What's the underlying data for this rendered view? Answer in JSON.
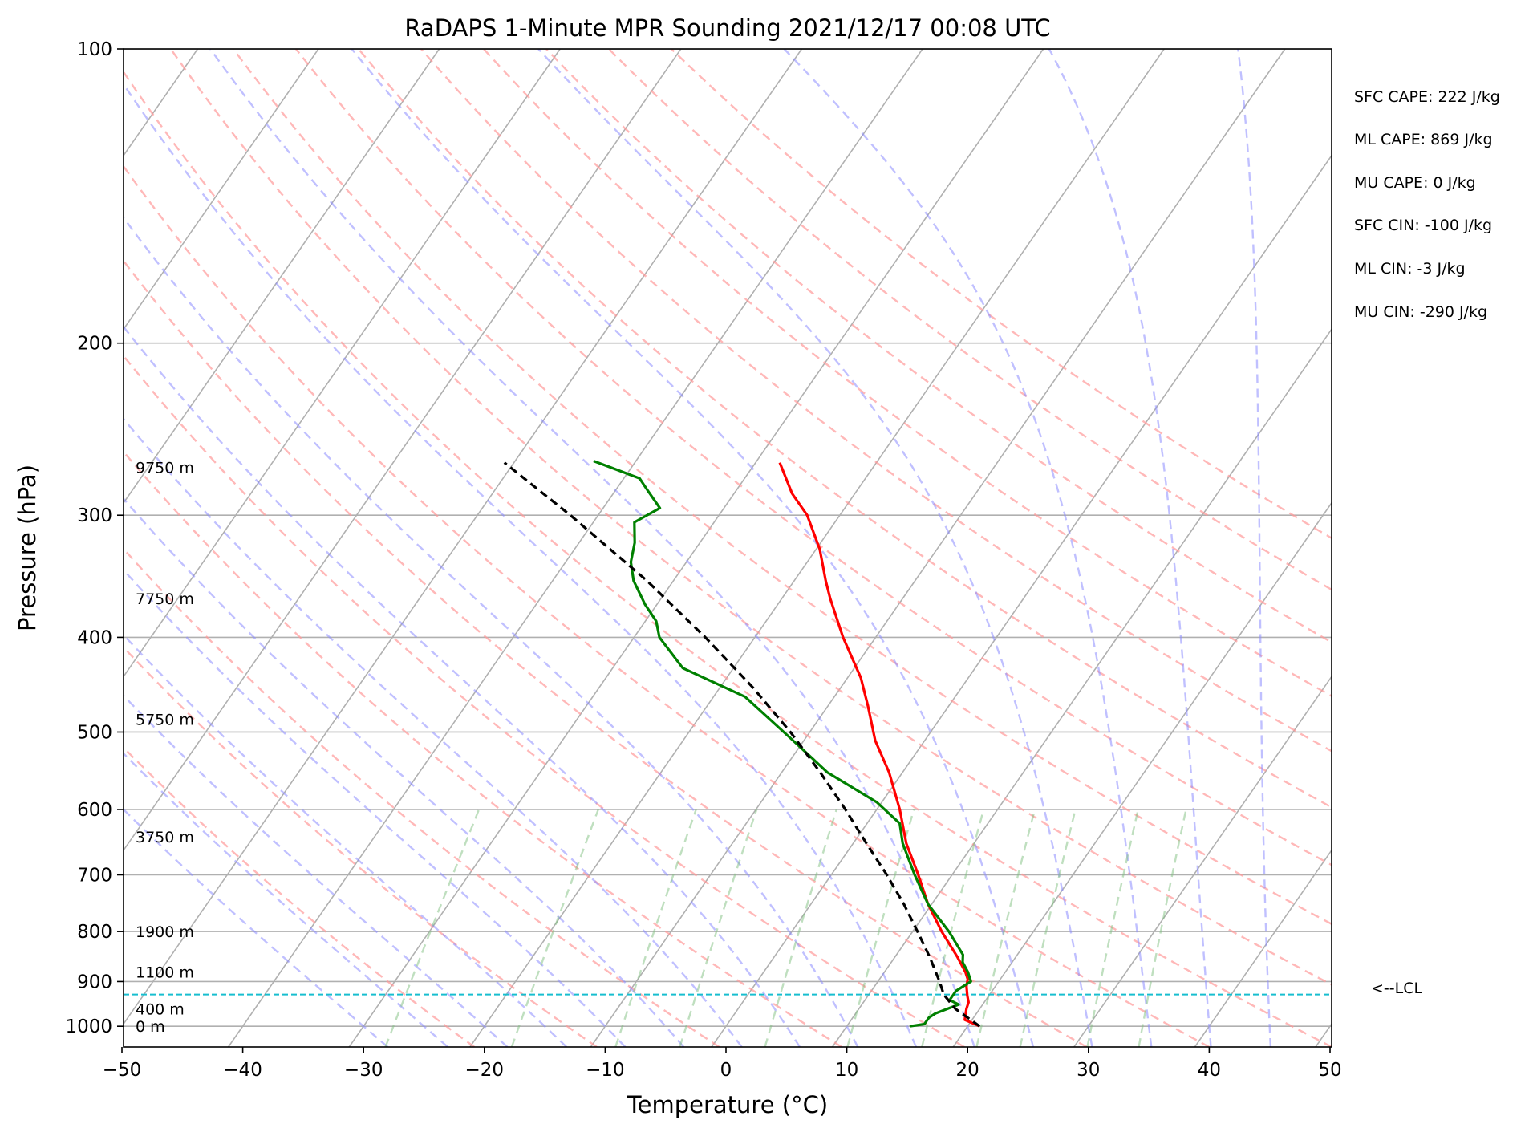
{
  "chart_data": {
    "type": "line",
    "subtype": "skew-t log-p diagram",
    "title": "RaDAPS 1-Minute MPR Sounding 2021/12/17 00:08 UTC",
    "xlabel": "Temperature (°C)",
    "ylabel": "Pressure (hPa)",
    "xlim": [
      -50,
      50
    ],
    "ylim": [
      1050,
      100
    ],
    "y_scale": "log",
    "grid": true,
    "x_ticks": [
      "−50",
      "−40",
      "−30",
      "−20",
      "−10",
      "0",
      "10",
      "20",
      "30",
      "40",
      "50"
    ],
    "y_ticks": [
      "100",
      "200",
      "300",
      "400",
      "500",
      "600",
      "700",
      "800",
      "900",
      "1000"
    ],
    "y_tick_values": [
      100,
      200,
      300,
      400,
      500,
      600,
      700,
      800,
      900,
      1000
    ],
    "height_labels": [
      {
        "p": 268,
        "text": "9750 m"
      },
      {
        "p": 365,
        "text": "7750 m"
      },
      {
        "p": 485,
        "text": "5750 m"
      },
      {
        "p": 640,
        "text": "3750 m"
      },
      {
        "p": 800,
        "text": "1900 m"
      },
      {
        "p": 880,
        "text": "1100 m"
      },
      {
        "p": 960,
        "text": "400 m"
      },
      {
        "p": 1000,
        "text": "0 m"
      }
    ],
    "stats": [
      "SFC CAPE: 222 J/kg",
      "ML CAPE: 869 J/kg",
      "MU CAPE: 0 J/kg",
      "SFC CIN: -100 J/kg",
      "ML CIN: -3 J/kg",
      "MU CIN: -290 J/kg"
    ],
    "lcl": {
      "p": 928,
      "label": "<--LCL",
      "color": "#17becf"
    },
    "series": [
      {
        "color": "#ff0000",
        "points": [
          [
            1000,
            21
          ],
          [
            985,
            19.4
          ],
          [
            960,
            18.9
          ],
          [
            945,
            18.7
          ],
          [
            930,
            18.2
          ],
          [
            910,
            17.6
          ],
          [
            895,
            17.3
          ],
          [
            880,
            16.7
          ],
          [
            870,
            16.2
          ],
          [
            850,
            15.2
          ],
          [
            800,
            12.4
          ],
          [
            750,
            9.7
          ],
          [
            700,
            7.2
          ],
          [
            650,
            4.4
          ],
          [
            600,
            1.9
          ],
          [
            550,
            -1.1
          ],
          [
            510,
            -4.1
          ],
          [
            470,
            -6.7
          ],
          [
            440,
            -8.9
          ],
          [
            400,
            -12.7
          ],
          [
            365,
            -16.0
          ],
          [
            350,
            -17.4
          ],
          [
            325,
            -19.7
          ],
          [
            300,
            -22.7
          ],
          [
            285,
            -25.2
          ],
          [
            265,
            -28.0
          ]
        ]
      },
      {
        "color": "#008000",
        "points": [
          [
            1000,
            15.2
          ],
          [
            995,
            16.3
          ],
          [
            980,
            16.3
          ],
          [
            970,
            16.6
          ],
          [
            950,
            18.0
          ],
          [
            940,
            17.0
          ],
          [
            920,
            17.0
          ],
          [
            900,
            17.7
          ],
          [
            880,
            16.9
          ],
          [
            860,
            15.9
          ],
          [
            845,
            15.5
          ],
          [
            800,
            13.0
          ],
          [
            750,
            9.7
          ],
          [
            700,
            6.9
          ],
          [
            650,
            4.1
          ],
          [
            620,
            2.7
          ],
          [
            590,
            -0.4
          ],
          [
            550,
            -6.2
          ],
          [
            510,
            -10.9
          ],
          [
            460,
            -17.4
          ],
          [
            430,
            -24.2
          ],
          [
            400,
            -27.9
          ],
          [
            385,
            -29.1
          ],
          [
            370,
            -31.0
          ],
          [
            350,
            -33.3
          ],
          [
            335,
            -34.6
          ],
          [
            320,
            -35.4
          ],
          [
            305,
            -36.6
          ],
          [
            295,
            -35.3
          ],
          [
            282,
            -37.5
          ],
          [
            275,
            -38.7
          ],
          [
            264,
            -43.5
          ]
        ]
      },
      {
        "color": "#000000",
        "dashed": true,
        "points": [
          [
            1000,
            21
          ],
          [
            960,
            18.0
          ],
          [
            928,
            16.2
          ],
          [
            900,
            15.1
          ],
          [
            850,
            12.9
          ],
          [
            800,
            10.4
          ],
          [
            750,
            7.7
          ],
          [
            700,
            4.6
          ],
          [
            650,
            1.1
          ],
          [
            600,
            -2.6
          ],
          [
            550,
            -6.8
          ],
          [
            500,
            -11.6
          ],
          [
            450,
            -17.3
          ],
          [
            400,
            -24.1
          ],
          [
            350,
            -32.2
          ],
          [
            300,
            -42.3
          ],
          [
            265,
            -50.8
          ]
        ]
      }
    ],
    "background_lines": {
      "isotherms": {
        "color": "#b0b0b0",
        "start_c": -160,
        "end_c": 50,
        "step_c": 10
      },
      "dry_adiabats": {
        "color": "#ff9a9a",
        "start_k": 250,
        "end_k": 410,
        "step_k": 10
      },
      "moist_adiabats": {
        "color": "#8c8cff",
        "start_c": -30,
        "end_c": 45,
        "step_c": 5
      },
      "mixing_ratios_gkg": [
        0.4,
        1,
        2,
        3,
        5,
        8,
        12,
        16,
        20,
        28,
        36
      ],
      "mixing_ratio_color": "#7fc07f",
      "mixing_ratio_top_hpa": 600
    }
  }
}
